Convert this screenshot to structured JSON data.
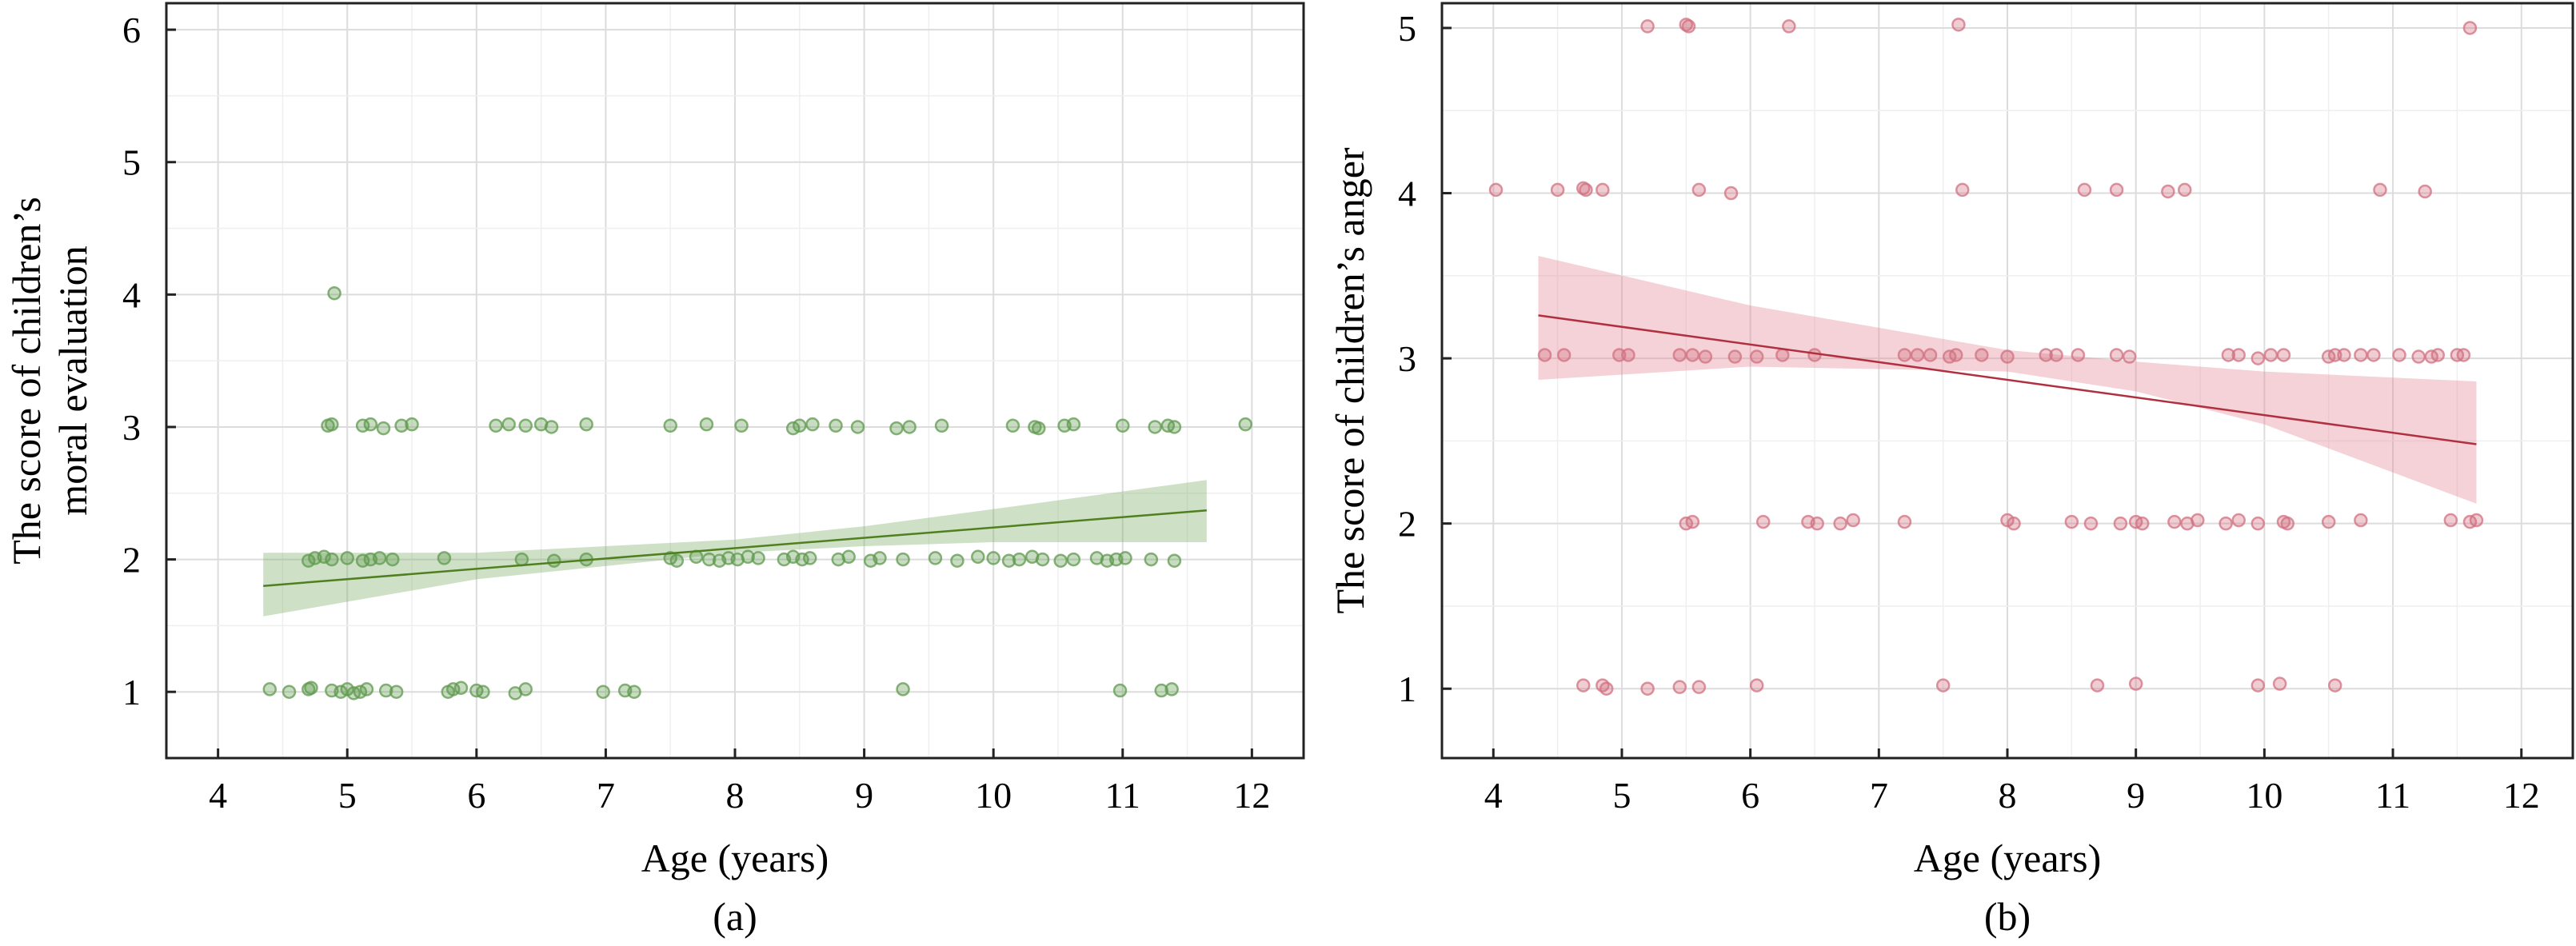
{
  "chart_data": [
    {
      "type": "scatter",
      "panel_label": "(a)",
      "xlabel": "Age (years)",
      "ylabel_lines": [
        "The score of children’s",
        "moral evaluation"
      ],
      "xlim": [
        3.6,
        12.4
      ],
      "ylim": [
        0.5,
        6.2
      ],
      "xticks": [
        4,
        5,
        6,
        7,
        8,
        9,
        10,
        11,
        12
      ],
      "yticks": [
        1,
        2,
        3,
        4,
        5,
        6
      ],
      "grid": true,
      "point_color": "#5f9a4e",
      "line_color": "#4f7f1f",
      "band_color": "#7fb06a",
      "regression": {
        "x": [
          4.35,
          11.65
        ],
        "y": [
          1.8,
          2.37
        ]
      },
      "band": {
        "x": [
          4.35,
          6.0,
          8.0,
          9.0,
          10.0,
          11.65
        ],
        "lower": [
          1.57,
          1.85,
          2.05,
          2.1,
          2.13,
          2.13
        ],
        "upper": [
          2.05,
          2.05,
          2.15,
          2.25,
          2.38,
          2.6
        ]
      },
      "points": [
        [
          4.4,
          1.02
        ],
        [
          4.55,
          1.0
        ],
        [
          4.7,
          1.02
        ],
        [
          4.72,
          1.03
        ],
        [
          4.88,
          1.01
        ],
        [
          4.95,
          1.0
        ],
        [
          5.0,
          1.02
        ],
        [
          5.05,
          0.99
        ],
        [
          5.1,
          1.0
        ],
        [
          5.15,
          1.02
        ],
        [
          5.3,
          1.01
        ],
        [
          5.38,
          1.0
        ],
        [
          5.78,
          1.0
        ],
        [
          5.82,
          1.02
        ],
        [
          5.88,
          1.03
        ],
        [
          6.0,
          1.01
        ],
        [
          6.05,
          1.0
        ],
        [
          6.3,
          0.99
        ],
        [
          6.38,
          1.02
        ],
        [
          6.98,
          1.0
        ],
        [
          7.15,
          1.01
        ],
        [
          7.22,
          1.0
        ],
        [
          9.3,
          1.02
        ],
        [
          10.98,
          1.01
        ],
        [
          11.3,
          1.01
        ],
        [
          11.38,
          1.02
        ],
        [
          4.7,
          1.99
        ],
        [
          4.75,
          2.01
        ],
        [
          4.82,
          2.02
        ],
        [
          4.88,
          2.0
        ],
        [
          5.0,
          2.01
        ],
        [
          5.12,
          1.99
        ],
        [
          5.18,
          2.0
        ],
        [
          5.25,
          2.01
        ],
        [
          5.35,
          2.0
        ],
        [
          5.75,
          2.01
        ],
        [
          6.35,
          2.0
        ],
        [
          6.6,
          1.99
        ],
        [
          6.85,
          2.0
        ],
        [
          7.5,
          2.01
        ],
        [
          7.55,
          1.99
        ],
        [
          7.7,
          2.02
        ],
        [
          7.8,
          2.0
        ],
        [
          7.88,
          1.99
        ],
        [
          7.95,
          2.01
        ],
        [
          8.02,
          2.0
        ],
        [
          8.1,
          2.02
        ],
        [
          8.18,
          2.01
        ],
        [
          8.38,
          2.0
        ],
        [
          8.45,
          2.02
        ],
        [
          8.52,
          2.0
        ],
        [
          8.58,
          2.01
        ],
        [
          8.8,
          2.0
        ],
        [
          8.88,
          2.02
        ],
        [
          9.05,
          1.99
        ],
        [
          9.12,
          2.01
        ],
        [
          9.3,
          2.0
        ],
        [
          9.55,
          2.01
        ],
        [
          9.72,
          1.99
        ],
        [
          9.88,
          2.02
        ],
        [
          10.0,
          2.01
        ],
        [
          10.12,
          1.99
        ],
        [
          10.2,
          2.0
        ],
        [
          10.3,
          2.02
        ],
        [
          10.38,
          2.0
        ],
        [
          10.52,
          1.99
        ],
        [
          10.62,
          2.0
        ],
        [
          10.8,
          2.01
        ],
        [
          10.88,
          1.99
        ],
        [
          10.95,
          2.0
        ],
        [
          11.02,
          2.01
        ],
        [
          11.22,
          2.0
        ],
        [
          11.4,
          1.99
        ],
        [
          4.9,
          4.01
        ],
        [
          4.85,
          3.01
        ],
        [
          4.88,
          3.02
        ],
        [
          5.12,
          3.01
        ],
        [
          5.18,
          3.02
        ],
        [
          5.28,
          2.99
        ],
        [
          5.42,
          3.01
        ],
        [
          5.5,
          3.02
        ],
        [
          6.15,
          3.01
        ],
        [
          6.25,
          3.02
        ],
        [
          6.38,
          3.01
        ],
        [
          6.5,
          3.02
        ],
        [
          6.58,
          3.0
        ],
        [
          6.85,
          3.02
        ],
        [
          7.5,
          3.01
        ],
        [
          7.78,
          3.02
        ],
        [
          8.05,
          3.01
        ],
        [
          8.45,
          2.99
        ],
        [
          8.5,
          3.01
        ],
        [
          8.6,
          3.02
        ],
        [
          8.78,
          3.01
        ],
        [
          8.95,
          3.0
        ],
        [
          9.25,
          2.99
        ],
        [
          9.35,
          3.0
        ],
        [
          9.6,
          3.01
        ],
        [
          10.15,
          3.01
        ],
        [
          10.32,
          3.0
        ],
        [
          10.35,
          2.99
        ],
        [
          10.55,
          3.01
        ],
        [
          10.62,
          3.02
        ],
        [
          11.0,
          3.01
        ],
        [
          11.25,
          3.0
        ],
        [
          11.35,
          3.01
        ],
        [
          11.4,
          3.0
        ],
        [
          11.95,
          3.02
        ]
      ]
    },
    {
      "type": "scatter",
      "panel_label": "(b)",
      "xlabel": "Age (years)",
      "ylabel_lines": [
        "The score of children’s anger"
      ],
      "xlim": [
        3.6,
        12.4
      ],
      "ylim": [
        0.58,
        5.15
      ],
      "xticks": [
        4,
        5,
        6,
        7,
        8,
        9,
        10,
        11,
        12
      ],
      "yticks": [
        1,
        2,
        3,
        4,
        5
      ],
      "grid": true,
      "point_color": "#d27080",
      "line_color": "#b03040",
      "band_color": "#e48a98",
      "regression": {
        "x": [
          4.35,
          11.65
        ],
        "y": [
          3.26,
          2.48
        ]
      },
      "band": {
        "x": [
          4.35,
          6.0,
          8.0,
          9.0,
          10.0,
          11.65
        ],
        "lower": [
          2.87,
          2.95,
          2.92,
          2.8,
          2.6,
          2.12
        ],
        "upper": [
          3.62,
          3.32,
          3.05,
          2.98,
          2.92,
          2.86
        ]
      },
      "points": [
        [
          4.7,
          1.02
        ],
        [
          4.85,
          1.02
        ],
        [
          4.88,
          1.0
        ],
        [
          5.2,
          1.0
        ],
        [
          5.45,
          1.01
        ],
        [
          5.6,
          1.01
        ],
        [
          6.05,
          1.02
        ],
        [
          7.5,
          1.02
        ],
        [
          8.7,
          1.02
        ],
        [
          9.0,
          1.03
        ],
        [
          9.95,
          1.02
        ],
        [
          10.12,
          1.03
        ],
        [
          10.55,
          1.02
        ],
        [
          5.5,
          2.0
        ],
        [
          5.55,
          2.01
        ],
        [
          6.1,
          2.01
        ],
        [
          6.45,
          2.01
        ],
        [
          6.52,
          2.0
        ],
        [
          6.7,
          2.0
        ],
        [
          6.8,
          2.02
        ],
        [
          7.2,
          2.01
        ],
        [
          8.0,
          2.02
        ],
        [
          8.05,
          2.0
        ],
        [
          8.5,
          2.01
        ],
        [
          8.65,
          2.0
        ],
        [
          8.88,
          2.0
        ],
        [
          9.0,
          2.01
        ],
        [
          9.05,
          2.0
        ],
        [
          9.3,
          2.01
        ],
        [
          9.4,
          2.0
        ],
        [
          9.48,
          2.02
        ],
        [
          9.7,
          2.0
        ],
        [
          9.8,
          2.02
        ],
        [
          9.95,
          2.0
        ],
        [
          10.15,
          2.01
        ],
        [
          10.18,
          2.0
        ],
        [
          10.5,
          2.01
        ],
        [
          10.75,
          2.02
        ],
        [
          11.45,
          2.02
        ],
        [
          11.6,
          2.01
        ],
        [
          11.65,
          2.02
        ],
        [
          4.4,
          3.02
        ],
        [
          4.55,
          3.02
        ],
        [
          4.98,
          3.02
        ],
        [
          5.05,
          3.02
        ],
        [
          5.45,
          3.02
        ],
        [
          5.55,
          3.02
        ],
        [
          5.65,
          3.01
        ],
        [
          5.88,
          3.01
        ],
        [
          6.05,
          3.01
        ],
        [
          6.25,
          3.02
        ],
        [
          6.5,
          3.02
        ],
        [
          7.2,
          3.02
        ],
        [
          7.3,
          3.02
        ],
        [
          7.4,
          3.02
        ],
        [
          7.55,
          3.01
        ],
        [
          7.6,
          3.02
        ],
        [
          7.8,
          3.02
        ],
        [
          8.0,
          3.01
        ],
        [
          8.3,
          3.02
        ],
        [
          8.38,
          3.02
        ],
        [
          8.55,
          3.02
        ],
        [
          8.85,
          3.02
        ],
        [
          8.95,
          3.01
        ],
        [
          9.72,
          3.02
        ],
        [
          9.8,
          3.02
        ],
        [
          9.95,
          3.0
        ],
        [
          10.05,
          3.02
        ],
        [
          10.15,
          3.02
        ],
        [
          10.5,
          3.01
        ],
        [
          10.55,
          3.02
        ],
        [
          10.62,
          3.02
        ],
        [
          10.75,
          3.02
        ],
        [
          10.85,
          3.02
        ],
        [
          11.05,
          3.02
        ],
        [
          11.2,
          3.01
        ],
        [
          11.3,
          3.01
        ],
        [
          11.35,
          3.02
        ],
        [
          11.5,
          3.02
        ],
        [
          11.55,
          3.02
        ],
        [
          4.02,
          4.02
        ],
        [
          4.5,
          4.02
        ],
        [
          4.7,
          4.03
        ],
        [
          4.72,
          4.02
        ],
        [
          4.85,
          4.02
        ],
        [
          5.6,
          4.02
        ],
        [
          5.85,
          4.0
        ],
        [
          7.65,
          4.02
        ],
        [
          8.6,
          4.02
        ],
        [
          8.85,
          4.02
        ],
        [
          9.25,
          4.01
        ],
        [
          9.38,
          4.02
        ],
        [
          10.9,
          4.02
        ],
        [
          11.25,
          4.01
        ],
        [
          5.2,
          5.01
        ],
        [
          5.5,
          5.02
        ],
        [
          5.52,
          5.01
        ],
        [
          6.3,
          5.01
        ],
        [
          7.62,
          5.02
        ],
        [
          11.6,
          5.0
        ]
      ]
    }
  ]
}
